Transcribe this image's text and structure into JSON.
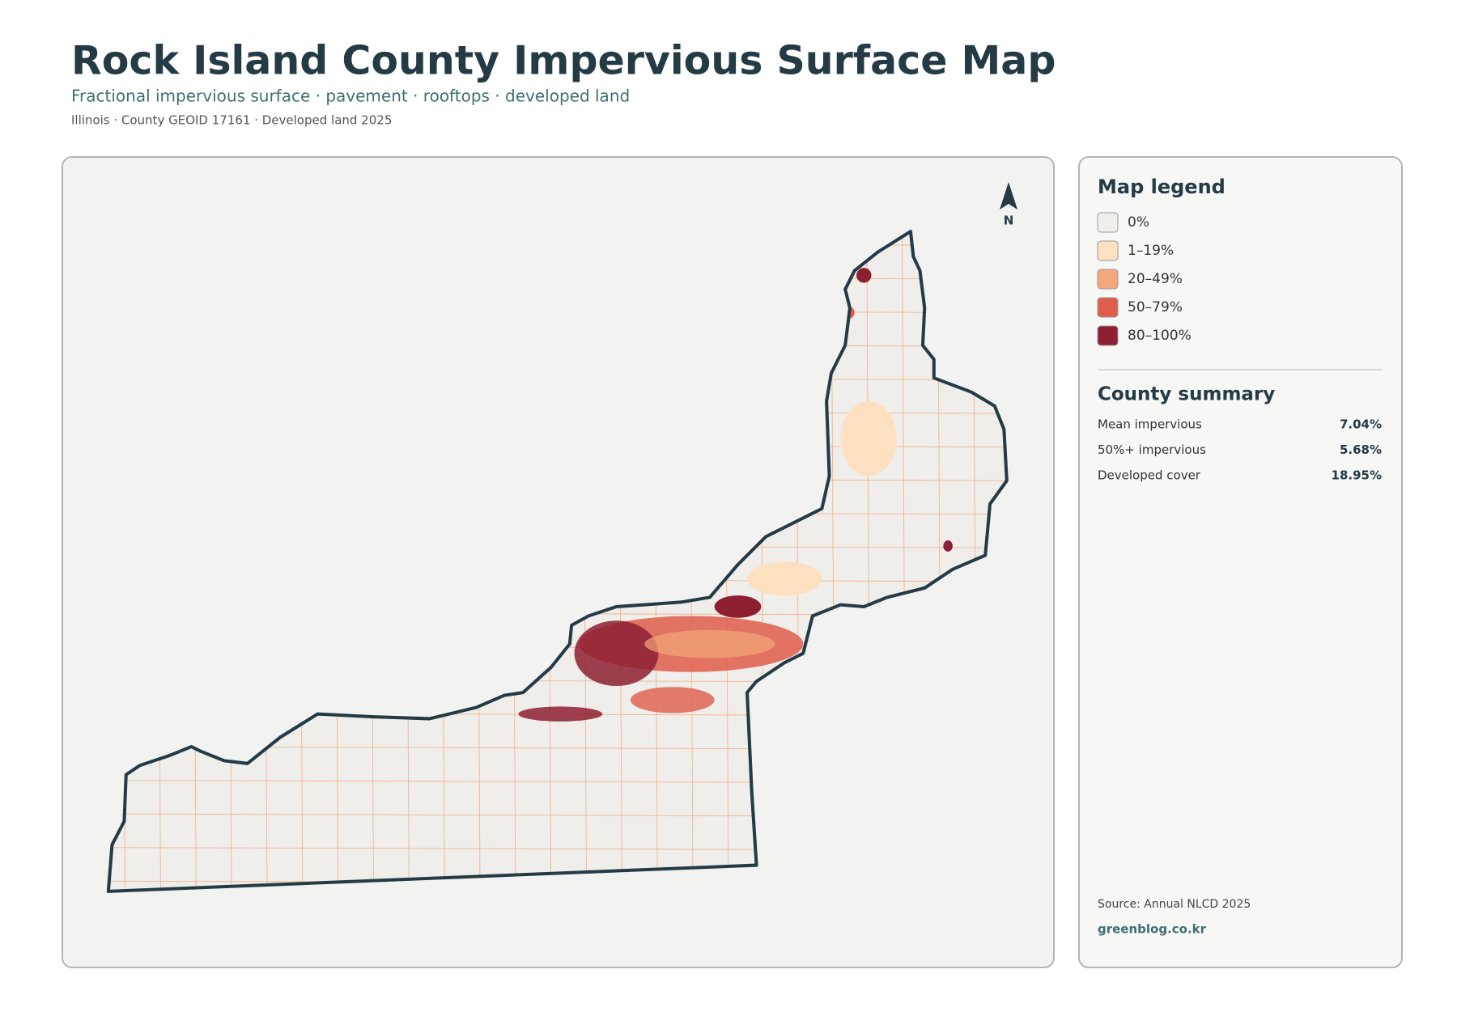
{
  "header": {
    "title": "Rock Island County Impervious Surface Map",
    "subtitle": "Fractional impervious surface · pavement · rooftops · developed land",
    "meta": "Illinois · County GEOID 17161 · Developed land 2025"
  },
  "map": {
    "north_label": "N"
  },
  "legend": {
    "title": "Map legend",
    "items": [
      {
        "label": "0%",
        "color": "#efeeea"
      },
      {
        "label": "1–19%",
        "color": "#fde0c0"
      },
      {
        "label": "20–49%",
        "color": "#f4a77a"
      },
      {
        "label": "50–79%",
        "color": "#df5d4b"
      },
      {
        "label": "80–100%",
        "color": "#8d1f33"
      }
    ]
  },
  "summary": {
    "title": "County summary",
    "rows": [
      [
        "Mean impervious",
        "7.04%"
      ],
      [
        "50%+ impervious",
        "5.68%"
      ],
      [
        "Developed cover",
        "18.95%"
      ]
    ]
  },
  "footer": {
    "source": "Source: Annual NLCD 2025",
    "credit": "greenblog.co.kr"
  }
}
